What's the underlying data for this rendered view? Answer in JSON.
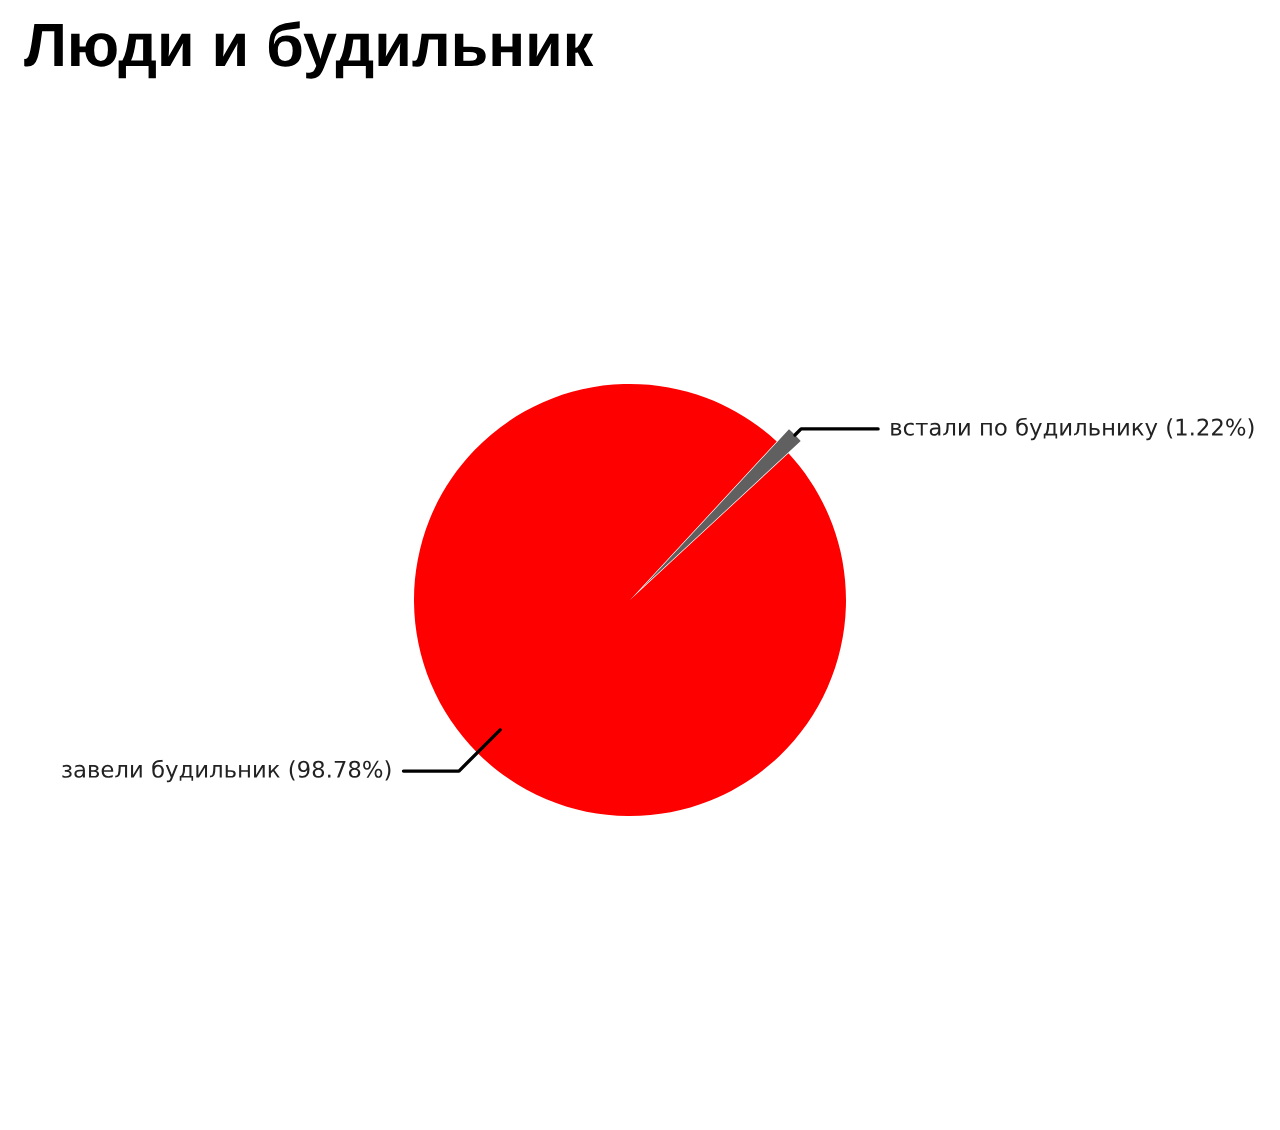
{
  "chart_data": {
    "type": "pie",
    "title": "Люди и будильник",
    "categories": [
      "встали по будильнику",
      "завели будильник"
    ],
    "values": [
      1.22,
      98.78
    ],
    "colors": [
      "#606060",
      "#ff0000"
    ],
    "value_labels": [
      "(1.22%)",
      "(98.78%)"
    ]
  }
}
